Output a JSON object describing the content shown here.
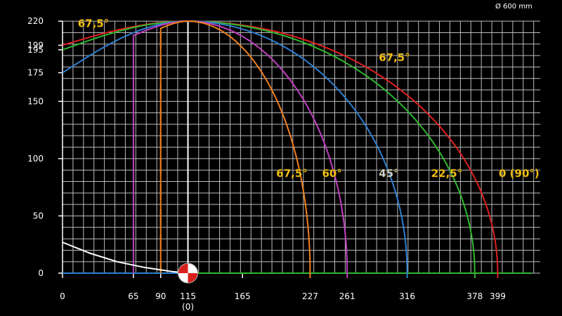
{
  "chart_data": {
    "type": "line",
    "title": "",
    "corner_label": "Ø 600 mm",
    "xlabel": "",
    "ylabel": "",
    "xlim": [
      0,
      438
    ],
    "ylim": [
      0,
      225
    ],
    "grid": true,
    "x_ticks": [
      {
        "value": 0,
        "label": "0"
      },
      {
        "value": 65,
        "label": "65"
      },
      {
        "value": 90,
        "label": "90"
      },
      {
        "value": 115,
        "label": "115"
      },
      {
        "value": 165,
        "label": "165"
      },
      {
        "value": 227,
        "label": "227"
      },
      {
        "value": 261,
        "label": "261"
      },
      {
        "value": 316,
        "label": "316"
      },
      {
        "value": 378,
        "label": "378"
      },
      {
        "value": 399,
        "label": "399"
      }
    ],
    "x_sublabel": {
      "value": 115,
      "label": "(0)"
    },
    "y_ticks": [
      {
        "value": 0,
        "label": "0"
      },
      {
        "value": 50,
        "label": "50"
      },
      {
        "value": 100,
        "label": "100"
      },
      {
        "value": 150,
        "label": "150"
      },
      {
        "value": 175,
        "label": "175"
      },
      {
        "value": 195,
        "label": "195"
      },
      {
        "value": 199,
        "label": "199"
      },
      {
        "value": 220,
        "label": "220"
      }
    ],
    "series": [
      {
        "name": "0 (90°)",
        "color": "#e02020",
        "x_start": 0,
        "x_peak": 115,
        "x_end": 399,
        "y_start": 199,
        "y_peak": 220
      },
      {
        "name": "22,5°",
        "color": "#2fb82f",
        "x_start": 0,
        "x_peak": 115,
        "x_end": 378,
        "y_start": 195,
        "y_peak": 220
      },
      {
        "name": "45°",
        "color": "#2f7fd0",
        "x_start": 0,
        "x_peak": 115,
        "x_end": 316,
        "y_start": 175,
        "y_peak": 220
      },
      {
        "name": "60°",
        "color": "#c040c0",
        "x_start": 65,
        "x_peak": 115,
        "x_end": 261,
        "y_start": 0,
        "y_peak": 220
      },
      {
        "name": "67,5°",
        "color": "#f08020",
        "x_start": 90,
        "x_peak": 115,
        "x_end": 227,
        "y_start": 0,
        "y_peak": 220
      }
    ],
    "annotations": [
      {
        "text": "67,5°",
        "x": 14,
        "y": 215
      },
      {
        "text": "67,5°",
        "x": 290,
        "y": 185
      },
      {
        "text": "67,5°",
        "x": 196,
        "y": 84
      },
      {
        "text": "60°",
        "x": 238,
        "y": 84
      },
      {
        "text": "45°",
        "x": 290,
        "y": 84
      },
      {
        "text": "22,5°",
        "x": 338,
        "y": 84
      },
      {
        "text": "0 (90°)",
        "x": 400,
        "y": 84
      }
    ],
    "decay_curve": {
      "color": "#ffffff",
      "x": [
        0,
        25,
        50,
        75,
        100,
        115
      ],
      "y": [
        27,
        17.5,
        10,
        5,
        1.5,
        0
      ]
    },
    "baseline": {
      "color": "#2fb82f",
      "x_start": 115,
      "x_end": 430
    },
    "baseline_left": {
      "color": "#2f7fd0",
      "x_start": 0,
      "x_end": 115
    },
    "marker": {
      "x": 115,
      "y": 0,
      "colors": [
        "#d8201c",
        "#ffffff"
      ]
    }
  }
}
